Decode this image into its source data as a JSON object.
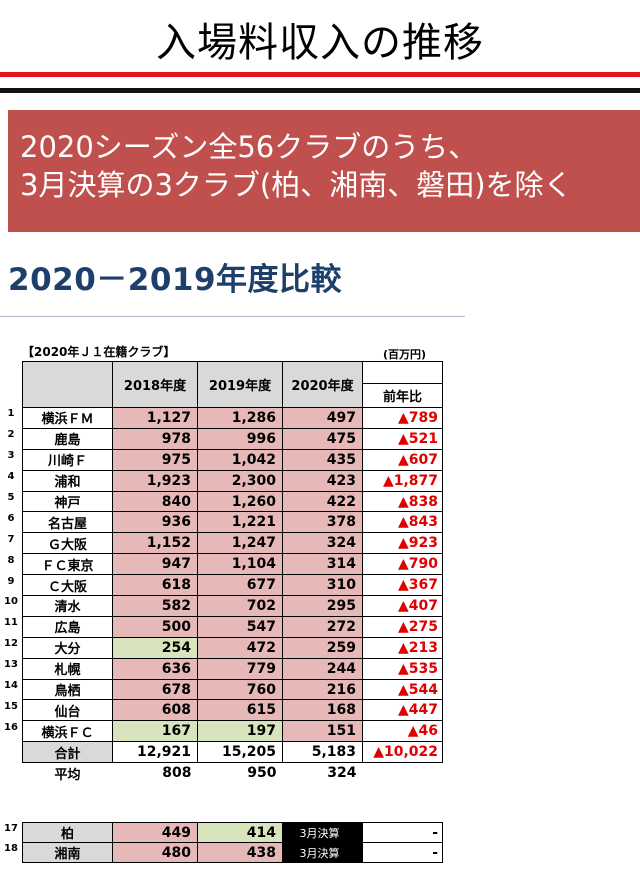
{
  "title": "入場料収入の推移",
  "banner": {
    "line1": "2020シーズン全56クラブのうち、",
    "line2": "3月決算の3クラブ(柏、湘南、磐田)を除く"
  },
  "subtitle": "2020－2019年度比較",
  "caption_left": "【2020年Ｊ１在籍クラブ】",
  "caption_right": "(百万円)",
  "headers": [
    "2018年度",
    "2019年度",
    "2020年度",
    "前年比"
  ],
  "rows": [
    {
      "no": "1",
      "club": "横浜ＦＭ",
      "y2018": "1,127",
      "y2019": "1,286",
      "y2020": "497",
      "diff": "▲789"
    },
    {
      "no": "2",
      "club": "鹿島",
      "y2018": "978",
      "y2019": "996",
      "y2020": "475",
      "diff": "▲521"
    },
    {
      "no": "3",
      "club": "川崎Ｆ",
      "y2018": "975",
      "y2019": "1,042",
      "y2020": "435",
      "diff": "▲607"
    },
    {
      "no": "4",
      "club": "浦和",
      "y2018": "1,923",
      "y2019": "2,300",
      "y2020": "423",
      "diff": "▲1,877"
    },
    {
      "no": "5",
      "club": "神戸",
      "y2018": "840",
      "y2019": "1,260",
      "y2020": "422",
      "diff": "▲838"
    },
    {
      "no": "6",
      "club": "名古屋",
      "y2018": "936",
      "y2019": "1,221",
      "y2020": "378",
      "diff": "▲843"
    },
    {
      "no": "7",
      "club": "Ｇ大阪",
      "y2018": "1,152",
      "y2019": "1,247",
      "y2020": "324",
      "diff": "▲923"
    },
    {
      "no": "8",
      "club": "ＦＣ東京",
      "y2018": "947",
      "y2019": "1,104",
      "y2020": "314",
      "diff": "▲790"
    },
    {
      "no": "9",
      "club": "Ｃ大阪",
      "y2018": "618",
      "y2019": "677",
      "y2020": "310",
      "diff": "▲367"
    },
    {
      "no": "10",
      "club": "清水",
      "y2018": "582",
      "y2019": "702",
      "y2020": "295",
      "diff": "▲407"
    },
    {
      "no": "11",
      "club": "広島",
      "y2018": "500",
      "y2019": "547",
      "y2020": "272",
      "diff": "▲275"
    },
    {
      "no": "12",
      "club": "大分",
      "y2018": "254",
      "y2019": "472",
      "y2020": "259",
      "diff": "▲213"
    },
    {
      "no": "13",
      "club": "札幌",
      "y2018": "636",
      "y2019": "779",
      "y2020": "244",
      "diff": "▲535"
    },
    {
      "no": "14",
      "club": "鳥栖",
      "y2018": "678",
      "y2019": "760",
      "y2020": "216",
      "diff": "▲544"
    },
    {
      "no": "15",
      "club": "仙台",
      "y2018": "608",
      "y2019": "615",
      "y2020": "168",
      "diff": "▲447"
    },
    {
      "no": "16",
      "club": "横浜ＦＣ",
      "y2018": "167",
      "y2019": "197",
      "y2020": "151",
      "diff": "▲46"
    }
  ],
  "total": {
    "label": "合計",
    "y2018": "12,921",
    "y2019": "15,205",
    "y2020": "5,183",
    "diff": "▲10,022"
  },
  "average": {
    "label": "平均",
    "y2018": "808",
    "y2019": "950",
    "y2020": "324"
  },
  "extra_rows": [
    {
      "no": "17",
      "club": "柏",
      "y2018": "449",
      "y2019": "414",
      "y2020": "3月決算",
      "diff": "-"
    },
    {
      "no": "18",
      "club": "湘南",
      "y2018": "480",
      "y2019": "438",
      "y2020": "3月決算",
      "diff": "-"
    }
  ],
  "colors": {
    "banner": "#c0504d",
    "subtitle": "#1f3f6b",
    "pink": "#e6b9b8",
    "green": "#d8e4bc",
    "negative": "#e00000",
    "rule_red": "#e0161c"
  }
}
